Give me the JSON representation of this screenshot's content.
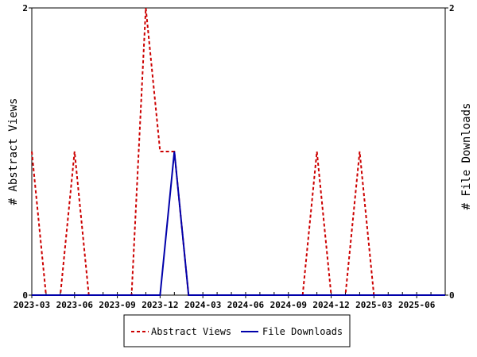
{
  "chart_data": {
    "type": "line",
    "x_ticks": [
      "2023-03",
      "2023-06",
      "2023-09",
      "2023-12",
      "2024-03",
      "2024-06",
      "2024-09",
      "2024-12",
      "2025-03",
      "2025-06"
    ],
    "x": [
      "2023-03",
      "2023-04",
      "2023-05",
      "2023-06",
      "2023-07",
      "2023-08",
      "2023-09",
      "2023-10",
      "2023-11",
      "2023-12",
      "2024-01",
      "2024-02",
      "2024-03",
      "2024-04",
      "2024-05",
      "2024-06",
      "2024-07",
      "2024-08",
      "2024-09",
      "2024-10",
      "2024-11",
      "2024-12",
      "2025-01",
      "2025-02",
      "2025-03",
      "2025-04",
      "2025-05",
      "2025-06",
      "2025-07",
      "2025-08"
    ],
    "series": [
      {
        "name": "Abstract Views",
        "color": "#cc0000",
        "dash": true,
        "axis": "left",
        "values": [
          1,
          0,
          0,
          1,
          0,
          0,
          0,
          0,
          2,
          1,
          1,
          0,
          0,
          0,
          0,
          0,
          0,
          0,
          0,
          0,
          1,
          0,
          0,
          1,
          0,
          0,
          0,
          0,
          0,
          0
        ]
      },
      {
        "name": "File Downloads",
        "color": "#0000aa",
        "dash": false,
        "axis": "right",
        "values": [
          0,
          0,
          0,
          0,
          0,
          0,
          0,
          0,
          0,
          0,
          1,
          0,
          0,
          0,
          0,
          0,
          0,
          0,
          0,
          0,
          0,
          0,
          0,
          0,
          0,
          0,
          0,
          0,
          0,
          0
        ]
      }
    ],
    "ylabel_left": "# Abstract Views",
    "ylabel_right": "# File Downloads",
    "ylim_left": [
      0,
      2
    ],
    "ylim_right": [
      0,
      2
    ],
    "y_ticks_left": [
      "0",
      "2"
    ],
    "y_ticks_right": [
      "0",
      "2"
    ],
    "grid": false,
    "legend_position": "bottom"
  }
}
